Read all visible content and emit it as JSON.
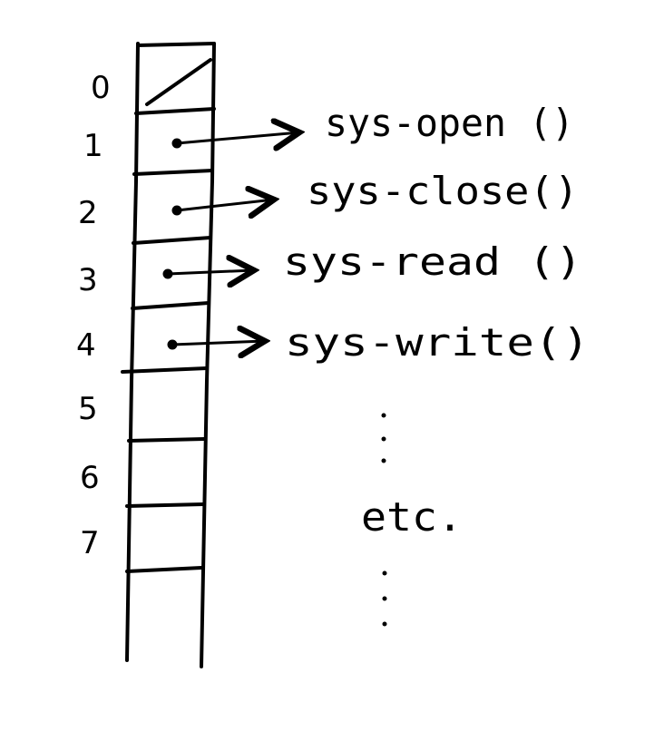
{
  "table": {
    "indices": [
      "0",
      "1",
      "2",
      "3",
      "4",
      "5",
      "6",
      "7"
    ]
  },
  "entries": [
    {
      "index": "1",
      "label": "sys-open ()"
    },
    {
      "index": "2",
      "label": "sys-close()"
    },
    {
      "index": "3",
      "label": "sys-read ()"
    },
    {
      "index": "4",
      "label": "sys-write()"
    }
  ],
  "ellipsis_label": "etc."
}
